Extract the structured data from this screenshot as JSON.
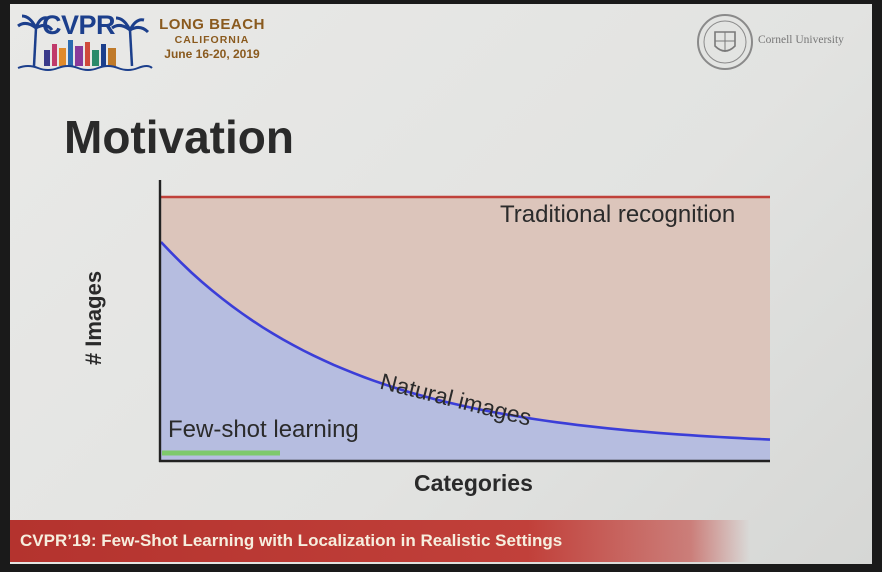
{
  "header": {
    "conference_logo": "CVPR",
    "venue_city": "LONG BEACH",
    "venue_state": "CALIFORNIA",
    "venue_dates": "June 16-20, 2019",
    "university": "Cornell University"
  },
  "slide": {
    "title": "Motivation"
  },
  "chart_data": {
    "type": "area",
    "xlabel": "Categories",
    "ylabel": "# Images",
    "series": [
      {
        "name": "Traditional recognition",
        "shape": "constant-high"
      },
      {
        "name": "Natural images",
        "shape": "long-tail-decay"
      },
      {
        "name": "Few-shot learning",
        "shape": "constant-low"
      }
    ],
    "grid": false,
    "colors": {
      "traditional": "#c0413a",
      "natural": "#3b3ed8",
      "few_shot": "#7ec96b",
      "region_fill_traditional": "#dcc5bb",
      "region_fill_natural": "#b6bde0"
    }
  },
  "footer": {
    "text": "CVPR’19: Few-Shot Learning with Localization in Realistic Settings"
  }
}
